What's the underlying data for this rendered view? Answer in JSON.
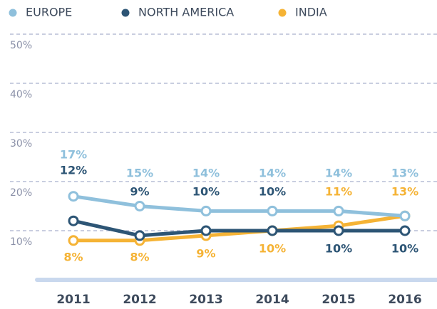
{
  "chart_data": {
    "type": "line",
    "categories": [
      "2011",
      "2012",
      "2013",
      "2014",
      "2015",
      "2016"
    ],
    "series": [
      {
        "name": "EUROPE",
        "color": "#8fc0dc",
        "values": [
          17,
          15,
          14,
          14,
          14,
          13
        ],
        "value_labels": [
          "17%",
          "15%",
          "14%",
          "14%",
          "14%",
          "13%"
        ]
      },
      {
        "name": "NORTH AMERICA",
        "color": "#2d5575",
        "values": [
          12,
          9,
          10,
          10,
          10,
          10
        ],
        "value_labels": [
          "12%",
          "9%",
          "10%",
          "10%",
          "10%",
          "10%"
        ]
      },
      {
        "name": "INDIA",
        "color": "#f5b335",
        "values": [
          8,
          8,
          9,
          10,
          11,
          13
        ],
        "value_labels": [
          "8%",
          "8%",
          "9%",
          "10%",
          "11%",
          "13%"
        ]
      }
    ],
    "ylim": [
      0,
      50
    ],
    "yticks": [
      {
        "value": 10,
        "label": "10%"
      },
      {
        "value": 20,
        "label": "20%"
      },
      {
        "value": 30,
        "label": "30%"
      },
      {
        "value": 40,
        "label": "40%"
      },
      {
        "value": 50,
        "label": "50%"
      }
    ],
    "grid": true,
    "legend": "top"
  }
}
